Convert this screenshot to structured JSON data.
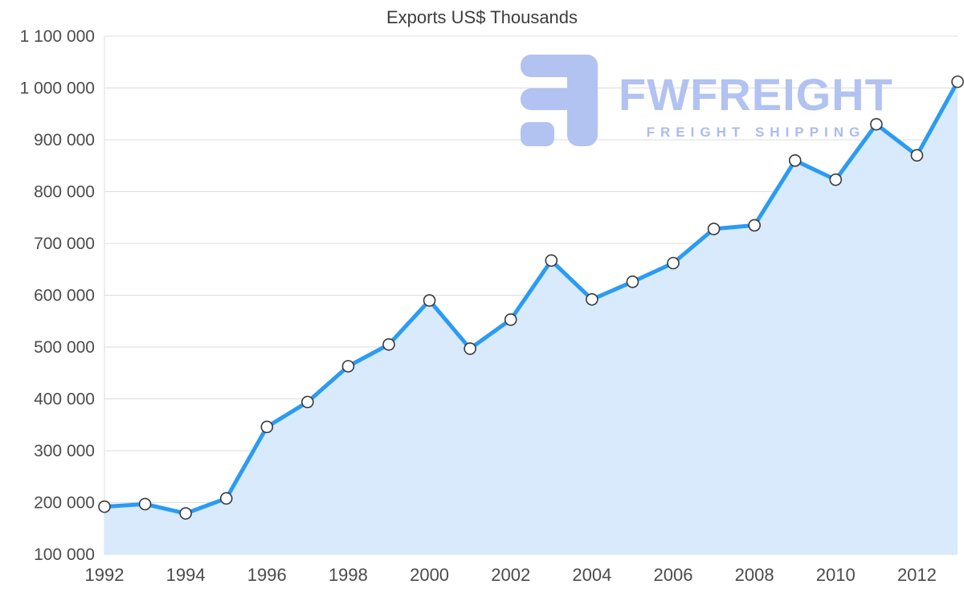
{
  "title": "Exports US$ Thousands",
  "watermark": {
    "brand": "FWFREIGHT",
    "tagline": "FREIGHT SHIPPING",
    "color": "#b2c2f1",
    "tagline_color": "#a9bbf2"
  },
  "chart_data": {
    "type": "area",
    "title": "Exports US$ Thousands",
    "x": [
      1992,
      1993,
      1994,
      1995,
      1996,
      1997,
      1998,
      1999,
      2000,
      2001,
      2002,
      2003,
      2004,
      2005,
      2006,
      2007,
      2008,
      2009,
      2010,
      2011,
      2012,
      2013
    ],
    "values": [
      192000,
      197000,
      179000,
      208000,
      346000,
      394000,
      463000,
      505000,
      590000,
      497000,
      553000,
      667000,
      592000,
      626000,
      662000,
      728000,
      735000,
      860000,
      823000,
      930000,
      870000,
      1012000
    ],
    "series_name": "Exports US$ Thousands",
    "x_tick_labels": [
      "1992",
      "1994",
      "1996",
      "1998",
      "2000",
      "2002",
      "2004",
      "2006",
      "2008",
      "2010",
      "2012"
    ],
    "y_ticks": [
      100000,
      200000,
      300000,
      400000,
      500000,
      600000,
      700000,
      800000,
      900000,
      1000000,
      1100000
    ],
    "y_tick_labels": [
      "100 000",
      "200 000",
      "300 000",
      "400 000",
      "500 000",
      "600 000",
      "700 000",
      "800 000",
      "900 000",
      "1 000 000",
      "1 100 000"
    ],
    "xlim": [
      1992,
      2013
    ],
    "ylim": [
      100000,
      1100000
    ],
    "grid": true,
    "legend": "none",
    "line_color": "#2b9bf4",
    "area_color": "#d8eafb",
    "grid_color": "#dcdcdc",
    "tick_color": "#4b4b4b",
    "marker_fill": "#ffffff",
    "marker_stroke": "#3a3a3a"
  }
}
